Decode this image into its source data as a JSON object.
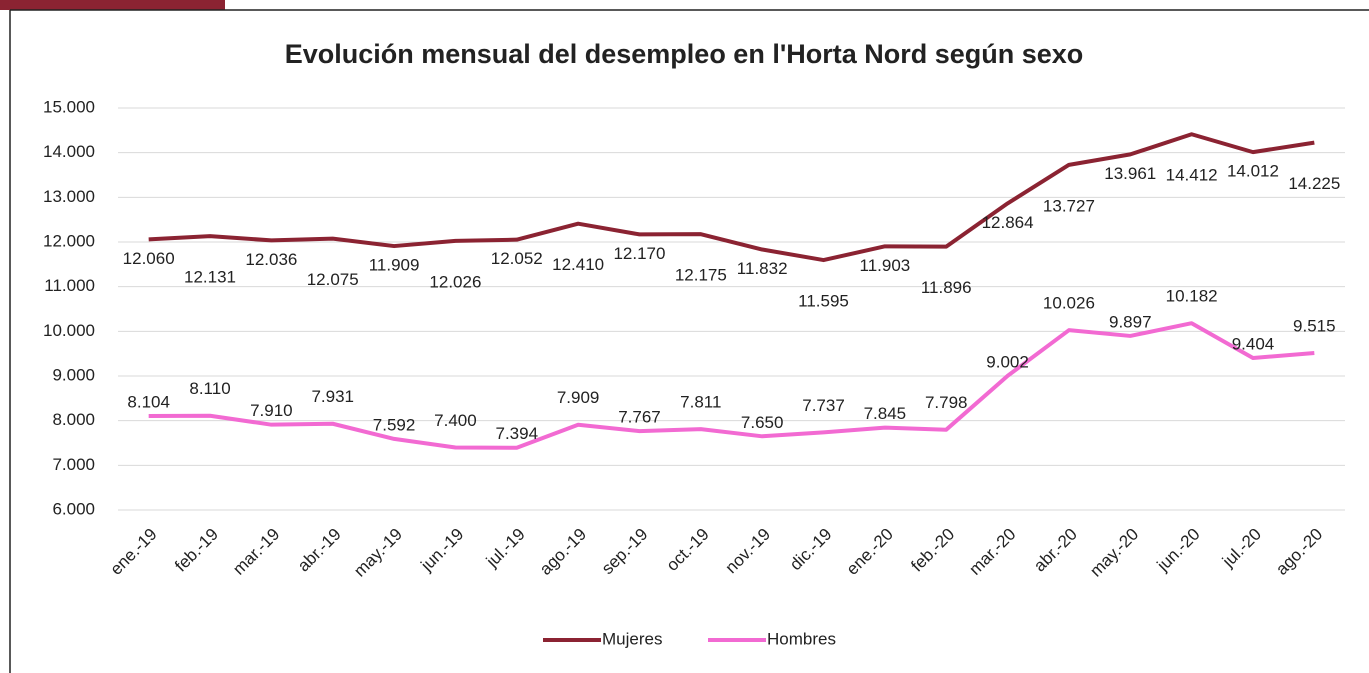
{
  "chart_data": {
    "type": "line",
    "title": "Evolución mensual del desempleo en l'Horta Nord según sexo",
    "categories": [
      "ene.-19",
      "feb.-19",
      "mar.-19",
      "abr.-19",
      "may.-19",
      "jun.-19",
      "jul.-19",
      "ago.-19",
      "sep.-19",
      "oct.-19",
      "nov.-19",
      "dic.-19",
      "ene.-20",
      "feb.-20",
      "mar.-20",
      "abr.-20",
      "may.-20",
      "jun.-20",
      "jul.-20",
      "ago.-20"
    ],
    "series": [
      {
        "name": "Mujeres",
        "color": "#8b2332",
        "values": [
          12060,
          12131,
          12036,
          12075,
          11909,
          12026,
          12052,
          12410,
          12170,
          12175,
          11832,
          11595,
          11903,
          11896,
          12864,
          13727,
          13961,
          14412,
          14012,
          14225
        ],
        "value_labels": [
          "12.060",
          "12.131",
          "12.036",
          "12.075",
          "11.909",
          "12.026",
          "12.052",
          "12.410",
          "12.170",
          "12.175",
          "11.832",
          "11.595",
          "11.903",
          "11.896",
          "12.864",
          "13.727",
          "13.961",
          "14.412",
          "14.012",
          "14.225"
        ]
      },
      {
        "name": "Hombres",
        "color": "#f26ad2",
        "values": [
          8104,
          8110,
          7910,
          7931,
          7592,
          7400,
          7394,
          7909,
          7767,
          7811,
          7650,
          7737,
          7845,
          7798,
          9002,
          10026,
          9897,
          10182,
          9404,
          9515
        ],
        "value_labels": [
          "8.104",
          "8.110",
          "7.910",
          "7.931",
          "7.592",
          "7.400",
          "7.394",
          "7.909",
          "7.767",
          "7.811",
          "7.650",
          "7.737",
          "7.845",
          "7.798",
          "9.002",
          "10.026",
          "9.897",
          "10.182",
          "9.404",
          "9.515"
        ]
      }
    ],
    "ylim": [
      6000,
      15000
    ],
    "yticks": [
      {
        "value": 6000,
        "label": "6.000"
      },
      {
        "value": 7000,
        "label": "7.000"
      },
      {
        "value": 8000,
        "label": "8.000"
      },
      {
        "value": 9000,
        "label": "9.000"
      },
      {
        "value": 10000,
        "label": "10.000"
      },
      {
        "value": 11000,
        "label": "11.000"
      },
      {
        "value": 12000,
        "label": "12.000"
      },
      {
        "value": 13000,
        "label": "13.000"
      },
      {
        "value": 14000,
        "label": "14.000"
      },
      {
        "value": 15000,
        "label": "15.000"
      }
    ],
    "grid": true,
    "legend": "bottom"
  }
}
